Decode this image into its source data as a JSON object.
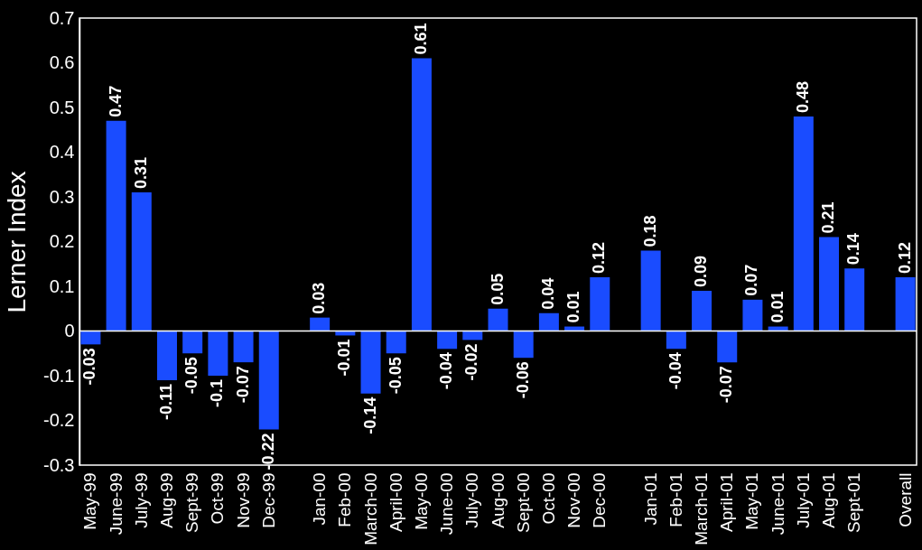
{
  "chart_data": {
    "type": "bar",
    "ylabel": "Lerner Index",
    "categories": [
      "May-99",
      "June-99",
      "July-99",
      "Aug-99",
      "Sept-99",
      "Oct-99",
      "Nov-99",
      "Dec-99",
      null,
      "Jan-00",
      "Feb-00",
      "March-00",
      "April-00",
      "May-00",
      "June-00",
      "July-00",
      "Aug-00",
      "Sept-00",
      "Oct-00",
      "Nov-00",
      "Dec-00",
      null,
      "Jan-01",
      "Feb-01",
      "March-01",
      "April-01",
      "May-01",
      "June-01",
      "July-01",
      "Aug-01",
      "Sept-01",
      null,
      "Overall"
    ],
    "values": [
      -0.03,
      0.47,
      0.31,
      -0.11,
      -0.05,
      -0.1,
      -0.07,
      -0.22,
      null,
      0.03,
      -0.01,
      -0.14,
      -0.05,
      0.61,
      -0.04,
      -0.02,
      0.05,
      -0.06,
      0.04,
      0.01,
      0.12,
      null,
      0.18,
      -0.04,
      0.09,
      -0.07,
      0.07,
      0.01,
      0.48,
      0.21,
      0.14,
      null,
      0.12
    ],
    "color": "#1a4cff",
    "ylim": [
      -0.3,
      0.7
    ],
    "yticks": [
      -0.3,
      -0.2,
      -0.1,
      0,
      0.1,
      0.2,
      0.3,
      0.4,
      0.5,
      0.6,
      0.7
    ],
    "ref_lines": [
      {
        "axis": "y",
        "value": 0,
        "color": "#ffffff"
      }
    ],
    "data_labels": true,
    "grid": false
  }
}
